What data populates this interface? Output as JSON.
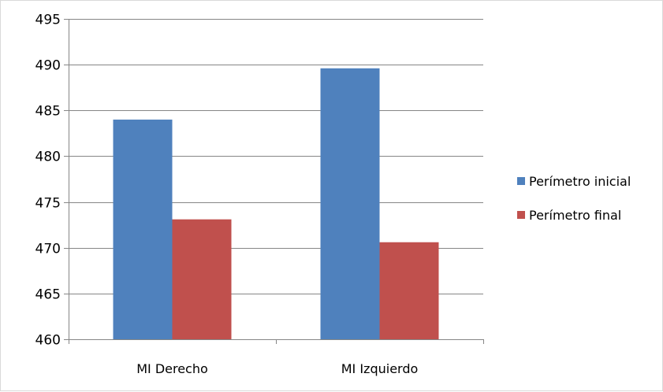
{
  "chart_data": {
    "type": "bar",
    "title": "",
    "xlabel": "",
    "ylabel": "",
    "categories": [
      "MI Derecho",
      "MI Izquierdo"
    ],
    "series": [
      {
        "name": "Perímetro inicial",
        "color": "#4f81bd",
        "values": [
          484,
          489.6
        ]
      },
      {
        "name": "Perímetro final",
        "color": "#c0504d",
        "values": [
          473.1,
          470.6
        ]
      }
    ],
    "ylim": [
      460,
      495
    ],
    "yticks": [
      460,
      465,
      470,
      475,
      480,
      485,
      490,
      495
    ],
    "grid": true,
    "legend_position": "right"
  }
}
